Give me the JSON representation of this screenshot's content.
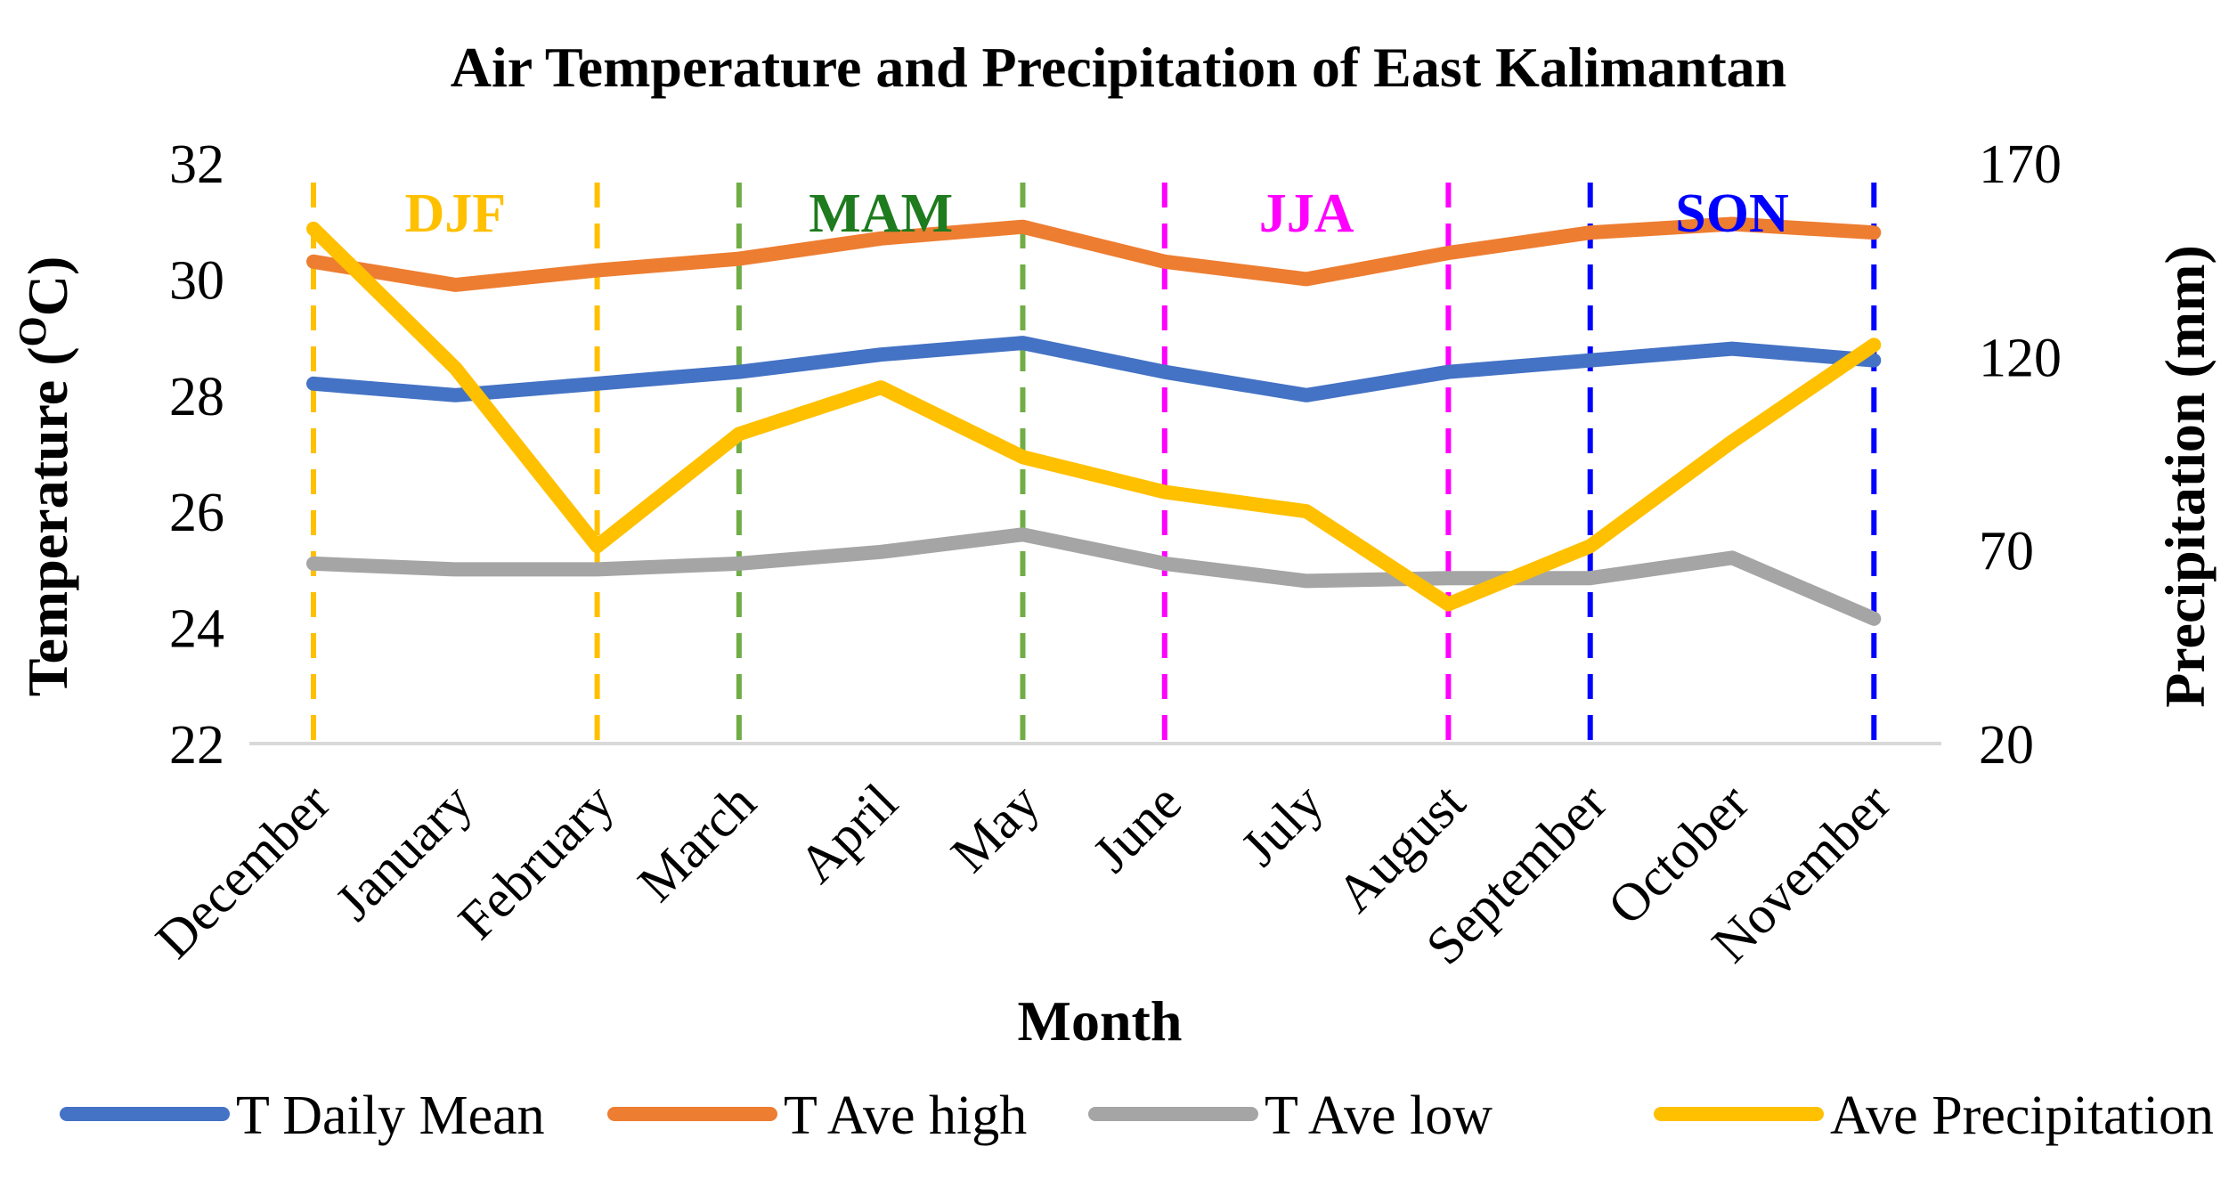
{
  "chart_data": {
    "type": "line",
    "title": "Air Temperature and Precipitation of East Kalimantan",
    "xlabel": "Month",
    "ylabel": "Temperature (OC)",
    "ylabel_base": "Temperature (",
    "ylabel_sup": "O",
    "ylabel_end": "C)",
    "y2label": "Precipitation (mm)",
    "ylim": [
      22,
      32
    ],
    "y_ticks": [
      "22",
      "24",
      "26",
      "28",
      "30",
      "32"
    ],
    "y2lim": [
      20,
      170
    ],
    "y2_ticks": [
      "20",
      "70",
      "120",
      "170"
    ],
    "categories": [
      "December",
      "January",
      "February",
      "March",
      "April",
      "May",
      "June",
      "July",
      "August",
      "September",
      "October",
      "November"
    ],
    "series": [
      {
        "name": "T Daily Mean",
        "axis": "left",
        "color": "#4472C4",
        "values": [
          28.2,
          28.0,
          28.2,
          28.4,
          28.7,
          28.9,
          28.4,
          28.0,
          28.4,
          28.6,
          28.8,
          28.6
        ]
      },
      {
        "name": "T Ave high",
        "axis": "left",
        "color": "#ED7D31",
        "values": [
          30.3,
          29.9,
          30.15,
          30.35,
          30.7,
          30.9,
          30.3,
          30.0,
          30.45,
          30.8,
          30.95,
          30.8
        ]
      },
      {
        "name": "T Ave low",
        "axis": "left",
        "color": "#A5A5A5",
        "values": [
          25.1,
          25.0,
          25.0,
          25.1,
          25.3,
          25.6,
          25.1,
          24.8,
          24.85,
          24.85,
          25.2,
          24.15
        ]
      },
      {
        "name": "Ave Precipitation",
        "axis": "right",
        "color": "#FFC000",
        "values": [
          153,
          117,
          71,
          100,
          112,
          94,
          85,
          80,
          56,
          71,
          98,
          123
        ]
      }
    ],
    "seasons": [
      {
        "label": "DJF",
        "color": "#FFC000",
        "label_color": "#FFC000",
        "start": 0,
        "end": 2
      },
      {
        "label": "MAM",
        "color": "#70AD47",
        "label_color": "#1E7B1E",
        "start": 3,
        "end": 5
      },
      {
        "label": "JJA",
        "color": "#FF00FF",
        "label_color": "#FF00FF",
        "start": 6,
        "end": 8
      },
      {
        "label": "SON",
        "color": "#0000FF",
        "label_color": "#0000FF",
        "start": 9,
        "end": 11
      }
    ],
    "legend_position": "bottom"
  }
}
